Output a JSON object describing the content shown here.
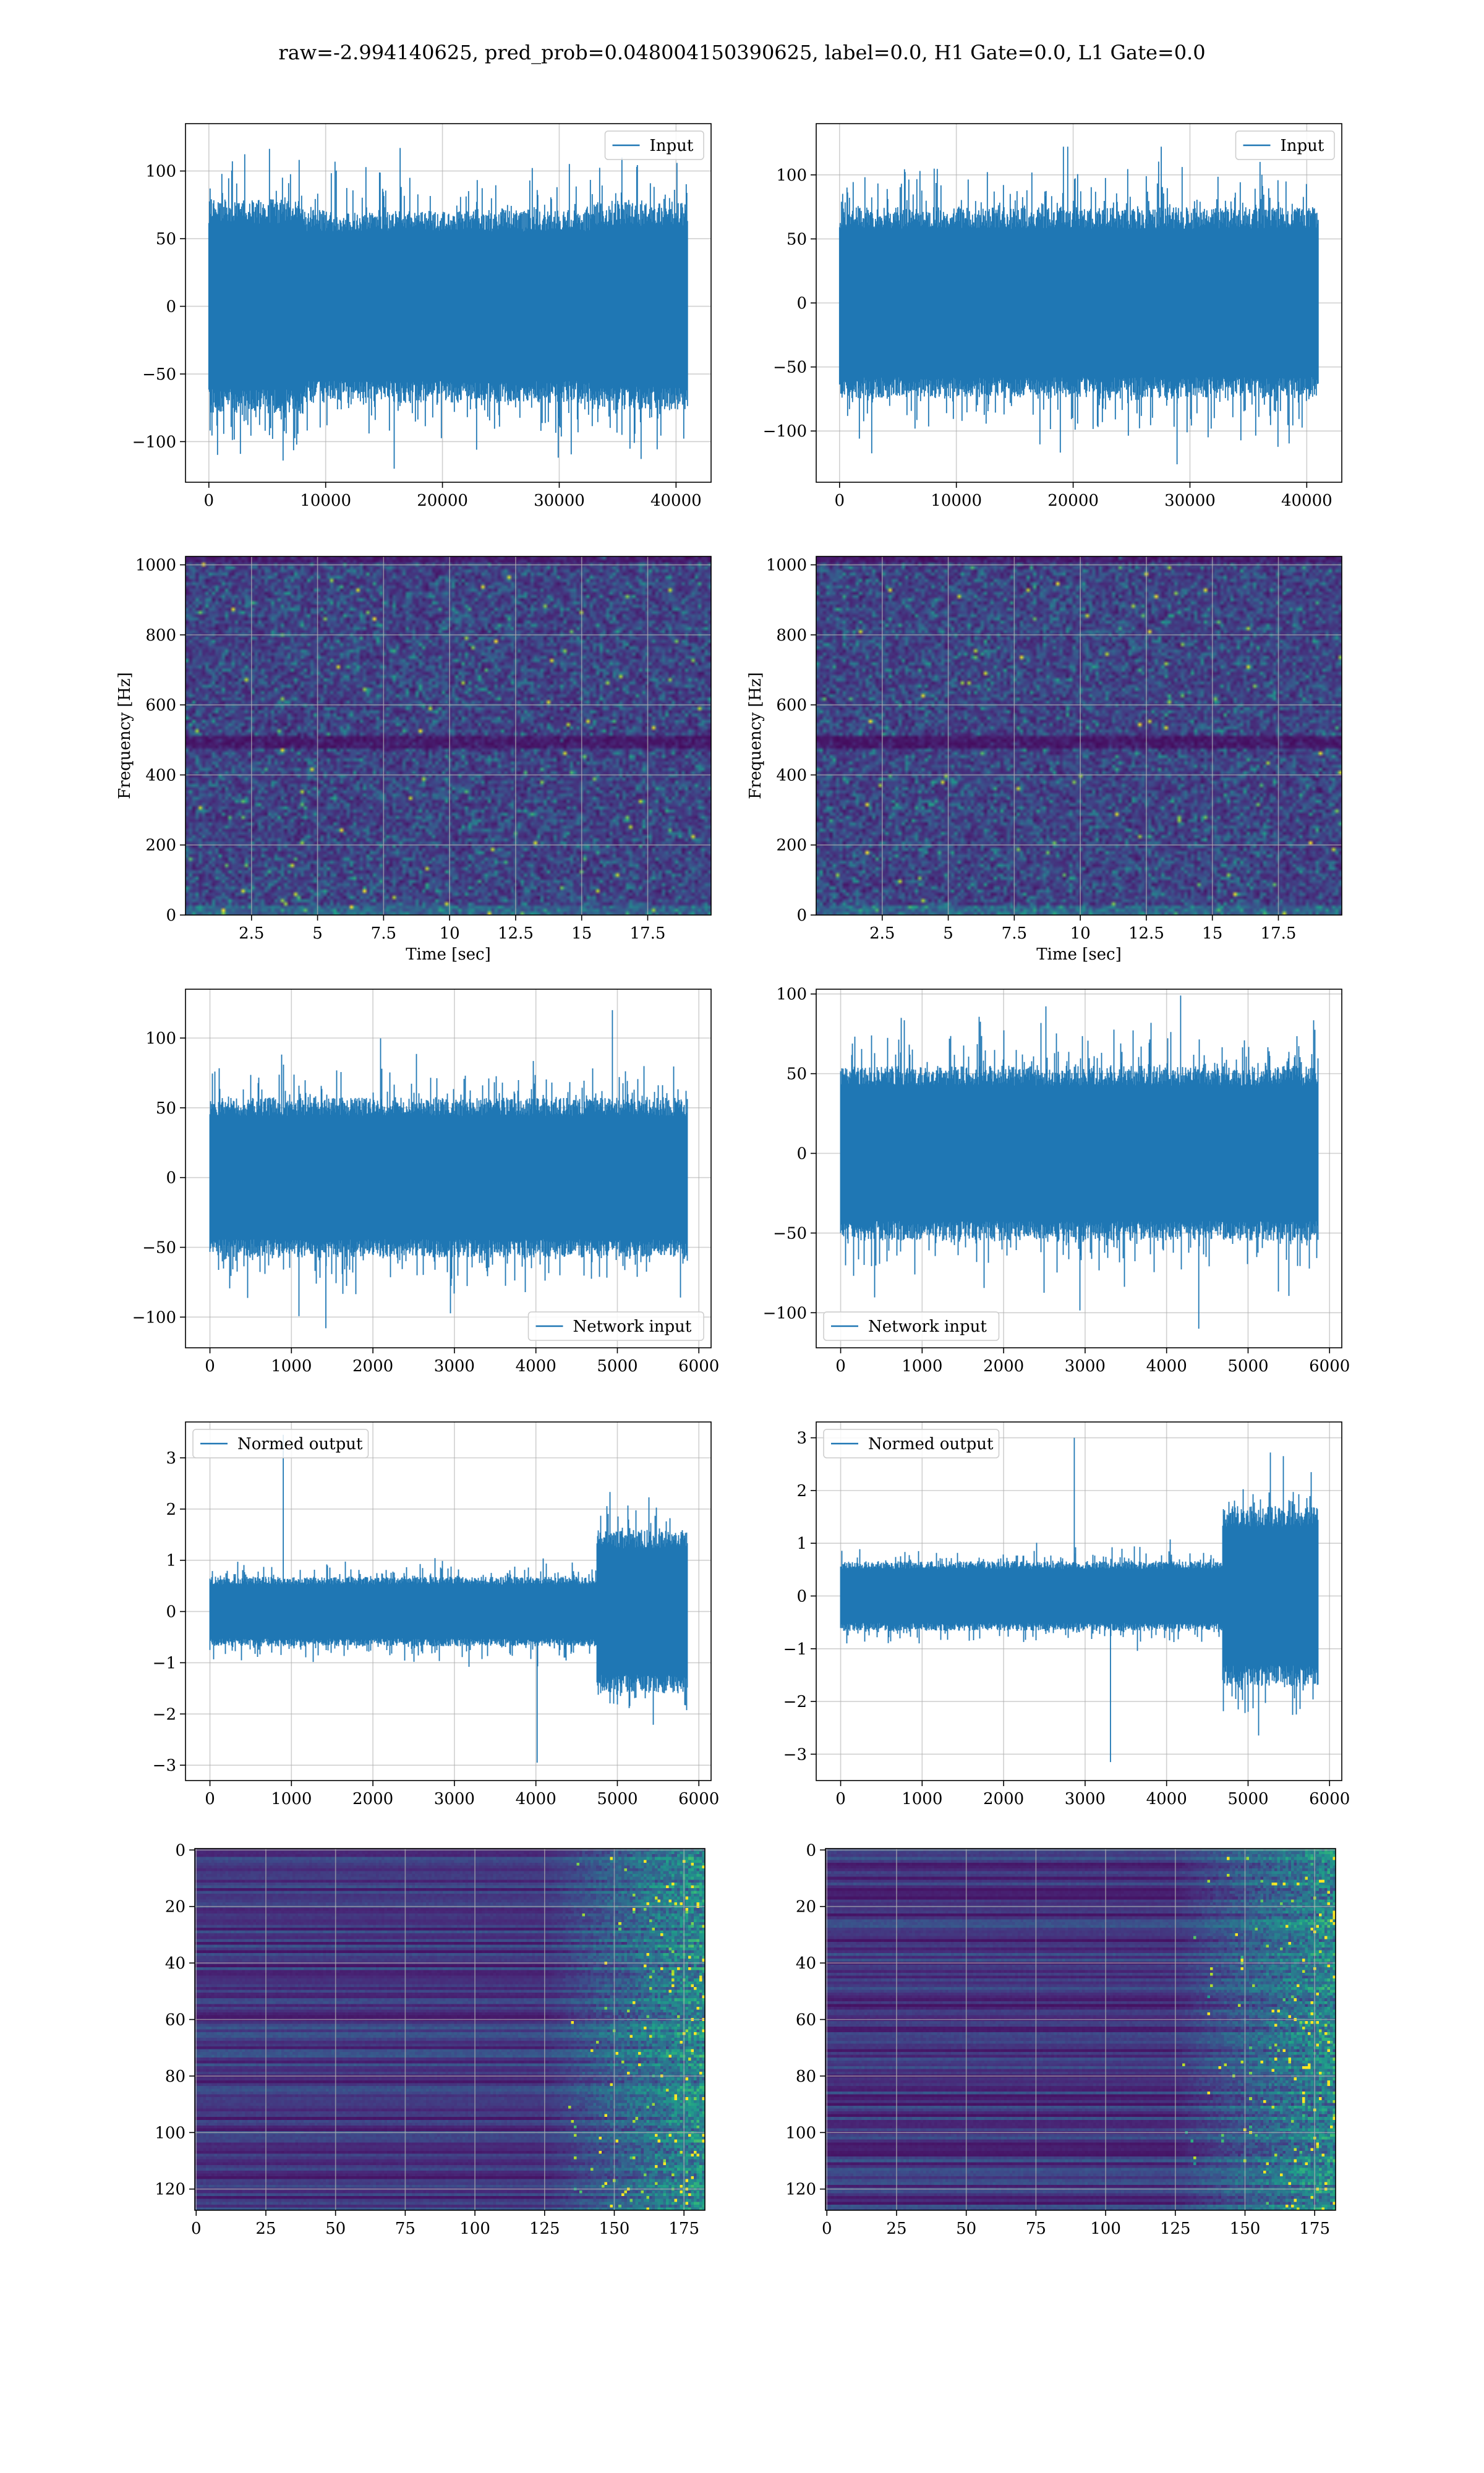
{
  "suptitle": "raw=-2.994140625, pred_prob=0.048004150390625, label=0.0, H1 Gate=0.0, L1 Gate=0.0",
  "colors": {
    "line": "#1f77b4",
    "grid": "#b0b0b0",
    "viridis": [
      "#440154",
      "#482878",
      "#3e4989",
      "#31688e",
      "#26828e",
      "#1f9e89",
      "#35b779",
      "#6ece58",
      "#b5de2b",
      "#fde725"
    ]
  },
  "chart_data": [
    {
      "id": "input-h1",
      "type": "line",
      "series": [
        {
          "name": "Input"
        }
      ],
      "legend": "upper right",
      "grid": true,
      "xlim": [
        -2000,
        43000
      ],
      "ylim": [
        -130,
        135
      ],
      "xticks": [
        0,
        10000,
        20000,
        30000,
        40000
      ],
      "yticks": [
        -100,
        -50,
        0,
        50,
        100
      ],
      "x_extent": [
        0,
        40960
      ],
      "points": 40960,
      "bands": [
        [
          0,
          0.2,
          72
        ],
        [
          0.2,
          0.8,
          65
        ],
        [
          0.8,
          1,
          70
        ]
      ],
      "spike_max": 117,
      "spike_min": -120
    },
    {
      "id": "input-l1",
      "type": "line",
      "series": [
        {
          "name": "Input"
        }
      ],
      "legend": "upper right",
      "grid": true,
      "xlim": [
        -2000,
        43000
      ],
      "ylim": [
        -140,
        140
      ],
      "xticks": [
        0,
        10000,
        20000,
        30000,
        40000
      ],
      "yticks": [
        -100,
        -50,
        0,
        50,
        100
      ],
      "x_extent": [
        0,
        40960
      ],
      "points": 40960,
      "bands": [
        [
          0,
          1,
          68
        ]
      ],
      "spike_max": 122,
      "spike_min": -126
    },
    {
      "id": "spectrogram-h1",
      "type": "heatmap",
      "grid": true,
      "xlabel": "Time [sec]",
      "ylabel": "Frequency [Hz]",
      "xlim": [
        0,
        19.9
      ],
      "ylim": [
        0,
        1024
      ],
      "xticks": [
        2.5,
        5.0,
        7.5,
        10.0,
        12.5,
        15.0,
        17.5
      ],
      "yticks": [
        0,
        200,
        400,
        600,
        800,
        1000
      ],
      "dark_band_hz": [
        480,
        510
      ],
      "bright_low_hz": 30
    },
    {
      "id": "spectrogram-l1",
      "type": "heatmap",
      "grid": true,
      "xlabel": "Time [sec]",
      "ylabel": "Frequency [Hz]",
      "xlim": [
        0,
        19.9
      ],
      "ylim": [
        0,
        1024
      ],
      "xticks": [
        2.5,
        5.0,
        7.5,
        10.0,
        12.5,
        15.0,
        17.5
      ],
      "yticks": [
        0,
        200,
        400,
        600,
        800,
        1000
      ],
      "dark_band_hz": [
        480,
        510
      ],
      "bright_low_hz": 30
    },
    {
      "id": "network-input-h1",
      "type": "line",
      "series": [
        {
          "name": "Network input"
        }
      ],
      "legend": "lower right",
      "grid": true,
      "xlim": [
        -300,
        6150
      ],
      "ylim": [
        -122,
        135
      ],
      "xticks": [
        0,
        1000,
        2000,
        3000,
        4000,
        5000,
        6000
      ],
      "yticks": [
        -100,
        -50,
        0,
        50,
        100
      ],
      "x_extent": [
        0,
        5860
      ],
      "points": 5860,
      "bands": [
        [
          0,
          1,
          52
        ]
      ],
      "spike_max": 120,
      "spike_min": -108
    },
    {
      "id": "network-input-l1",
      "type": "line",
      "series": [
        {
          "name": "Network input"
        }
      ],
      "legend": "lower left",
      "grid": true,
      "xlim": [
        -300,
        6150
      ],
      "ylim": [
        -122,
        103
      ],
      "xticks": [
        0,
        1000,
        2000,
        3000,
        4000,
        5000,
        6000
      ],
      "yticks": [
        -100,
        -50,
        0,
        50,
        100
      ],
      "x_extent": [
        0,
        5860
      ],
      "points": 5860,
      "bands": [
        [
          0,
          1,
          50
        ]
      ],
      "spike_max": 99,
      "spike_min": -110
    },
    {
      "id": "normed-output-h1",
      "type": "line",
      "series": [
        {
          "name": "Normed output"
        }
      ],
      "legend": "upper left",
      "grid": true,
      "xlim": [
        -300,
        6150
      ],
      "ylim": [
        -3.3,
        3.7
      ],
      "xticks": [
        0,
        1000,
        2000,
        3000,
        4000,
        5000,
        6000
      ],
      "yticks": [
        -3,
        -2,
        -1,
        0,
        1,
        2,
        3
      ],
      "x_extent": [
        0,
        5860
      ],
      "points": 5860,
      "bands": [
        [
          0,
          0.81,
          0.62
        ],
        [
          0.81,
          1,
          1.45
        ]
      ],
      "spike_max": 3.45,
      "spike_min": -2.95
    },
    {
      "id": "normed-output-l1",
      "type": "line",
      "series": [
        {
          "name": "Normed output"
        }
      ],
      "legend": "upper left",
      "grid": true,
      "xlim": [
        -300,
        6150
      ],
      "ylim": [
        -3.5,
        3.3
      ],
      "xticks": [
        0,
        1000,
        2000,
        3000,
        4000,
        5000,
        6000
      ],
      "yticks": [
        -3,
        -2,
        -1,
        0,
        1,
        2,
        3
      ],
      "x_extent": [
        0,
        5860
      ],
      "points": 5860,
      "bands": [
        [
          0,
          0.8,
          0.6
        ],
        [
          0.8,
          1,
          1.55
        ]
      ],
      "spike_max": 3.0,
      "spike_min": -3.15
    },
    {
      "id": "feature-map-h1",
      "type": "heatmap",
      "grid": true,
      "xlim": [
        -0.5,
        182.5
      ],
      "ylim": [
        127.5,
        -0.5
      ],
      "y_inverted": true,
      "xticks": [
        0,
        25,
        50,
        75,
        100,
        125,
        150,
        175
      ],
      "yticks": [
        0,
        20,
        40,
        60,
        80,
        100,
        120
      ],
      "shape": [
        128,
        183
      ],
      "active_from_col": 125
    },
    {
      "id": "feature-map-l1",
      "type": "heatmap",
      "grid": true,
      "xlim": [
        -0.5,
        182.5
      ],
      "ylim": [
        127.5,
        -0.5
      ],
      "y_inverted": true,
      "xticks": [
        0,
        25,
        50,
        75,
        100,
        125,
        150,
        175
      ],
      "yticks": [
        0,
        20,
        40,
        60,
        80,
        100,
        120
      ],
      "shape": [
        128,
        183
      ],
      "active_from_col": 125
    }
  ]
}
